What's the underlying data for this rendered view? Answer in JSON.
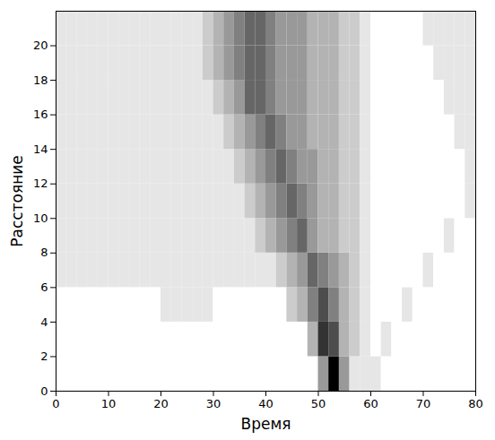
{
  "chart_data": {
    "type": "heatmap",
    "x_label": "Время",
    "y_label": "Расстояние",
    "xlim": [
      0,
      80
    ],
    "ylim": [
      0,
      22
    ],
    "xticks": [
      0,
      10,
      20,
      30,
      40,
      50,
      60,
      70,
      80
    ],
    "yticks": [
      0,
      2,
      4,
      6,
      8,
      10,
      12,
      14,
      16,
      18,
      20
    ],
    "x_bins": [
      0,
      2,
      4,
      6,
      8,
      10,
      12,
      14,
      16,
      18,
      20,
      22,
      24,
      26,
      28,
      30,
      32,
      34,
      36,
      38,
      40,
      42,
      44,
      46,
      48,
      50,
      52,
      54,
      56,
      58,
      60,
      62,
      64,
      66,
      68,
      70,
      72,
      74,
      76,
      78,
      80
    ],
    "y_bins": [
      0,
      2,
      4,
      6,
      8,
      10,
      12,
      14,
      16,
      18,
      20,
      22
    ],
    "zlim": [
      0,
      10
    ],
    "colors": [
      "#ffffff",
      "#000000"
    ],
    "cells": [
      [
        0,
        0,
        0,
        0,
        0,
        0,
        0,
        0,
        0,
        0,
        0,
        0,
        0,
        0,
        0,
        0,
        0,
        0,
        0,
        0,
        0,
        0,
        0,
        0,
        0,
        4,
        10,
        4,
        1,
        1,
        1,
        0,
        0,
        0,
        0,
        0,
        0,
        0,
        0,
        0
      ],
      [
        0,
        0,
        0,
        0,
        0,
        0,
        0,
        0,
        0,
        0,
        0,
        0,
        0,
        0,
        0,
        0,
        0,
        0,
        0,
        0,
        0,
        0,
        0,
        0,
        3,
        8,
        7,
        3,
        2,
        1,
        0,
        1,
        0,
        0,
        0,
        0,
        0,
        0,
        0,
        0
      ],
      [
        0,
        0,
        0,
        0,
        0,
        0,
        0,
        0,
        0,
        0,
        1,
        1,
        1,
        1,
        1,
        0,
        0,
        0,
        0,
        0,
        0,
        0,
        2,
        3,
        5,
        7,
        5,
        3,
        2,
        1,
        0,
        0,
        0,
        1,
        0,
        0,
        0,
        0,
        0,
        0
      ],
      [
        1,
        1,
        1,
        1,
        1,
        1,
        1,
        1,
        1,
        1,
        1,
        1,
        1,
        1,
        1,
        1,
        1,
        1,
        1,
        1,
        1,
        2,
        3,
        4,
        6,
        5,
        4,
        3,
        2,
        1,
        0,
        0,
        0,
        0,
        0,
        1,
        0,
        0,
        0,
        0
      ],
      [
        1,
        1,
        1,
        1,
        1,
        1,
        1,
        1,
        1,
        1,
        1,
        1,
        1,
        1,
        1,
        1,
        1,
        1,
        1,
        2,
        3,
        4,
        5,
        6,
        4,
        3,
        3,
        2,
        2,
        1,
        0,
        0,
        0,
        0,
        0,
        0,
        0,
        1,
        0,
        0
      ],
      [
        1,
        1,
        1,
        1,
        1,
        1,
        1,
        1,
        1,
        1,
        1,
        1,
        1,
        1,
        1,
        1,
        1,
        1,
        2,
        3,
        4,
        5,
        6,
        5,
        4,
        3,
        3,
        2,
        2,
        1,
        0,
        0,
        0,
        0,
        0,
        0,
        0,
        0,
        0,
        1
      ],
      [
        1,
        1,
        1,
        1,
        1,
        1,
        1,
        1,
        1,
        1,
        1,
        1,
        1,
        1,
        1,
        1,
        1,
        2,
        3,
        4,
        5,
        6,
        5,
        4,
        4,
        3,
        3,
        2,
        2,
        1,
        0,
        0,
        0,
        0,
        0,
        0,
        0,
        0,
        0,
        1
      ],
      [
        1,
        1,
        1,
        1,
        1,
        1,
        1,
        1,
        1,
        1,
        1,
        1,
        1,
        1,
        1,
        1,
        2,
        3,
        4,
        5,
        6,
        5,
        4,
        4,
        3,
        3,
        3,
        2,
        2,
        1,
        0,
        0,
        0,
        0,
        0,
        0,
        0,
        0,
        1,
        1
      ],
      [
        1,
        1,
        1,
        1,
        1,
        1,
        1,
        1,
        1,
        1,
        1,
        1,
        1,
        1,
        1,
        2,
        3,
        4,
        6,
        6,
        5,
        4,
        4,
        4,
        3,
        3,
        3,
        2,
        2,
        1,
        0,
        0,
        0,
        0,
        0,
        0,
        0,
        1,
        1,
        1
      ],
      [
        1,
        1,
        1,
        1,
        1,
        1,
        1,
        1,
        1,
        1,
        1,
        1,
        1,
        1,
        2,
        3,
        4,
        5,
        6,
        6,
        5,
        4,
        4,
        4,
        3,
        3,
        3,
        2,
        2,
        1,
        0,
        0,
        0,
        0,
        0,
        0,
        1,
        1,
        1,
        1
      ],
      [
        1,
        1,
        1,
        1,
        1,
        1,
        1,
        1,
        1,
        1,
        1,
        1,
        1,
        1,
        2,
        3,
        4,
        5,
        6,
        6,
        5,
        4,
        4,
        4,
        3,
        3,
        3,
        2,
        2,
        1,
        0,
        0,
        0,
        0,
        0,
        1,
        1,
        1,
        1,
        1
      ]
    ]
  }
}
